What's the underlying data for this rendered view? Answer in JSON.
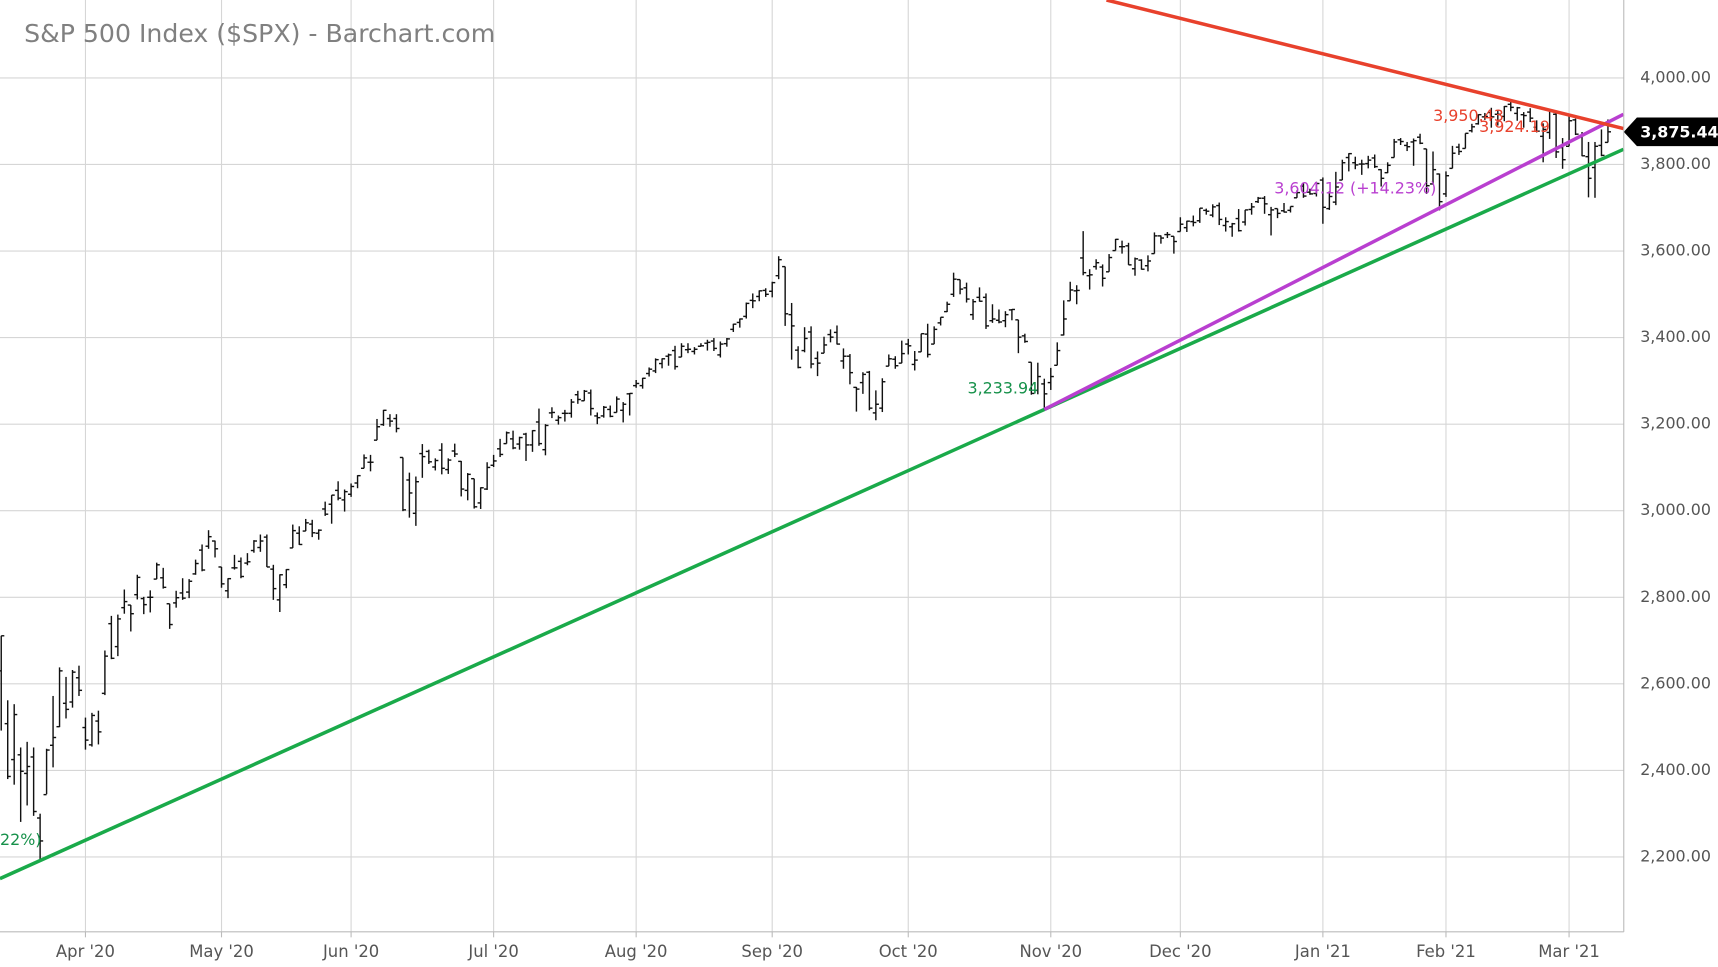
{
  "chart_data": {
    "type": "ohlc",
    "title": "S&P 500 Index ($SPX) - Barchart.com",
    "categories": [
      null,
      null,
      null,
      null,
      null,
      null,
      null,
      null,
      null,
      null,
      null,
      null,
      null,
      "Apr '20",
      null,
      null,
      null,
      null,
      null,
      null,
      null,
      null,
      null,
      null,
      null,
      null,
      null,
      null,
      null,
      null,
      null,
      null,
      null,
      null,
      "May '20",
      null,
      null,
      null,
      null,
      null,
      null,
      null,
      null,
      null,
      null,
      null,
      null,
      null,
      null,
      null,
      null,
      null,
      null,
      null,
      "Jun '20",
      null,
      null,
      null,
      null,
      null,
      null,
      null,
      null,
      null,
      null,
      null,
      null,
      null,
      null,
      null,
      null,
      null,
      null,
      null,
      null,
      null,
      "Jul '20",
      null,
      null,
      null,
      null,
      null,
      null,
      null,
      null,
      null,
      null,
      null,
      null,
      null,
      null,
      null,
      null,
      null,
      null,
      null,
      null,
      null,
      "Aug '20",
      null,
      null,
      null,
      null,
      null,
      null,
      null,
      null,
      null,
      null,
      null,
      null,
      null,
      null,
      null,
      null,
      null,
      null,
      null,
      null,
      "Sep '20",
      null,
      null,
      null,
      null,
      null,
      null,
      null,
      null,
      null,
      null,
      null,
      null,
      null,
      null,
      null,
      null,
      null,
      null,
      null,
      null,
      "Oct '20",
      null,
      null,
      null,
      null,
      null,
      null,
      null,
      null,
      null,
      null,
      null,
      null,
      null,
      null,
      null,
      null,
      null,
      null,
      null,
      null,
      null,
      "Nov '20",
      null,
      null,
      null,
      null,
      null,
      null,
      null,
      null,
      null,
      null,
      null,
      null,
      null,
      null,
      null,
      null,
      null,
      null,
      null,
      "Dec '20",
      null,
      null,
      null,
      null,
      null,
      null,
      null,
      null,
      null,
      null,
      null,
      null,
      null,
      null,
      null,
      null,
      null,
      null,
      null,
      null,
      null,
      "Jan '21",
      null,
      null,
      null,
      null,
      null,
      null,
      null,
      null,
      null,
      null,
      null,
      null,
      null,
      null,
      null,
      null,
      null,
      null,
      "Feb '21",
      null,
      null,
      null,
      null,
      null,
      null,
      null,
      null,
      null,
      null,
      null,
      null,
      null,
      null,
      null,
      null,
      null,
      null,
      "Mar '21",
      null,
      null,
      null,
      null,
      null,
      null
    ],
    "open": [
      2630,
      2508,
      2425,
      2436,
      2393,
      2431,
      2290,
      2344,
      2458,
      2501,
      2555,
      2558,
      2614,
      2499,
      2459,
      2514,
      2578,
      2739,
      2686,
      2776,
      2782,
      2806,
      2797,
      2800,
      2842,
      2845,
      2785,
      2787,
      2810,
      2812,
      2854,
      2909,
      2918,
      2930,
      2870,
      2815,
      2868,
      2883,
      2879,
      2908,
      2915,
      2939,
      2865,
      2794,
      2829,
      2914,
      2948,
      2953,
      2969,
      2948,
      3004,
      3015,
      3047,
      3025,
      3038,
      3064,
      3098,
      3112,
      3163,
      3199,
      3213,
      3213,
      3123,
      3071,
      2994,
      3132,
      3137,
      3101,
      3140,
      3095,
      3138,
      3114,
      3047,
      3074,
      3018,
      3050,
      3105,
      3143,
      3155,
      3166,
      3154,
      3177,
      3152,
      3205,
      3141,
      3226,
      3209,
      3225,
      3225,
      3268,
      3254,
      3272,
      3219,
      3219,
      3234,
      3227,
      3232,
      3270,
      3289,
      3289,
      3317,
      3323,
      3340,
      3357,
      3370,
      3355,
      3372,
      3368,
      3380,
      3387,
      3392,
      3360,
      3386,
      3419,
      3435,
      3449,
      3486,
      3495,
      3509,
      3507,
      3543,
      3564,
      3453,
      3371,
      3370,
      3413,
      3352,
      3364,
      3407,
      3412,
      3346,
      3357,
      3285,
      3296,
      3320,
      3226,
      3237,
      3334,
      3350,
      3341,
      3385,
      3338,
      3367,
      3408,
      3385,
      3434,
      3460,
      3500,
      3534,
      3515,
      3453,
      3493,
      3493,
      3439,
      3440,
      3439,
      3464,
      3441,
      3404,
      3343,
      3278,
      3293,
      3296,
      3336,
      3406,
      3485,
      3508,
      3584,
      3543,
      3564,
      3563,
      3552,
      3601,
      3610,
      3612,
      3559,
      3579,
      3566,
      3594,
      3635,
      3638,
      3634,
      3645,
      3654,
      3668,
      3670,
      3694,
      3683,
      3705,
      3659,
      3656,
      3675,
      3667,
      3696,
      3714,
      3722,
      3684,
      3698,
      3693,
      3694,
      3723,
      3750,
      3736,
      3733,
      3764,
      3698,
      3713,
      3764,
      3816,
      3804,
      3801,
      3802,
      3815,
      3788,
      3781,
      3816,
      3857,
      3844,
      3852,
      3863,
      3836,
      3755,
      3778,
      3732,
      3791,
      3840,
      3837,
      3878,
      3894,
      3910,
      3920,
      3916,
      3911,
      3939,
      3918,
      3915,
      3921,
      3886,
      3865,
      3874,
      3916,
      3839,
      3842,
      3903,
      3863,
      3818,
      3793,
      3844,
      3851
    ],
    "high": [
      2711,
      2562,
      2553,
      2453,
      2466,
      2453,
      2300,
      2450,
      2572,
      2638,
      2616,
      2632,
      2642,
      2522,
      2533,
      2538,
      2677,
      2757,
      2760,
      2818,
      2782,
      2852,
      2801,
      2816,
      2880,
      2868,
      2785,
      2815,
      2844,
      2842,
      2887,
      2922,
      2955,
      2931,
      2870,
      2844,
      2898,
      2892,
      2902,
      2932,
      2945,
      2945,
      2875,
      2853,
      2865,
      2968,
      2964,
      2981,
      2979,
      2957,
      3021,
      3036,
      3068,
      3049,
      3063,
      3082,
      3130,
      3129,
      3212,
      3233,
      3223,
      3223,
      3123,
      3088,
      3079,
      3154,
      3141,
      3121,
      3156,
      3121,
      3155,
      3115,
      3087,
      3074,
      3054,
      3112,
      3129,
      3166,
      3183,
      3185,
      3171,
      3180,
      3186,
      3236,
      3200,
      3239,
      3220,
      3233,
      3258,
      3277,
      3279,
      3280,
      3227,
      3242,
      3243,
      3264,
      3251,
      3272,
      3302,
      3307,
      3331,
      3352,
      3352,
      3363,
      3381,
      3387,
      3387,
      3378,
      3387,
      3395,
      3399,
      3391,
      3399,
      3432,
      3444,
      3481,
      3502,
      3509,
      3514,
      3529,
      3588,
      3564,
      3480,
      3380,
      3424,
      3426,
      3368,
      3402,
      3419,
      3428,
      3375,
      3362,
      3286,
      3320,
      3323,
      3278,
      3306,
      3361,
      3357,
      3393,
      3397,
      3369,
      3409,
      3432,
      3426,
      3447,
      3483,
      3550,
      3534,
      3527,
      3489,
      3516,
      3502,
      3477,
      3465,
      3461,
      3466,
      3441,
      3409,
      3343,
      3342,
      3305,
      3330,
      3389,
      3486,
      3529,
      3521,
      3646,
      3558,
      3581,
      3569,
      3593,
      3628,
      3624,
      3619,
      3585,
      3581,
      3590,
      3643,
      3636,
      3644,
      3634,
      3678,
      3670,
      3682,
      3699,
      3698,
      3708,
      3712,
      3678,
      3665,
      3697,
      3695,
      3711,
      3725,
      3727,
      3702,
      3698,
      3711,
      3703,
      3740,
      3757,
      3744,
      3760,
      3770,
      3738,
      3783,
      3811,
      3826,
      3818,
      3811,
      3820,
      3823,
      3789,
      3805,
      3859,
      3861,
      3852,
      3860,
      3871,
      3836,
      3830,
      3779,
      3784,
      3843,
      3848,
      3872,
      3894,
      3916,
      3919,
      3931,
      3926,
      3935,
      3950.43,
      3933,
      3921,
      3930,
      3902,
      3895,
      3928,
      3925,
      3861,
      3914,
      3906,
      3875,
      3852,
      3852,
      3881,
      3904
    ],
    "low": [
      2492,
      2380,
      2367,
      2281,
      2319,
      2295,
      2191.86,
      2345,
      2407,
      2500,
      2520,
      2545,
      2572,
      2448,
      2455,
      2460,
      2574,
      2657,
      2664,
      2762,
      2721,
      2795,
      2761,
      2765,
      2842,
      2820,
      2727,
      2776,
      2794,
      2798,
      2852,
      2860,
      2912,
      2892,
      2822,
      2798,
      2864,
      2844,
      2874,
      2903,
      2905,
      2870,
      2794,
      2766,
      2821,
      2914,
      2921,
      2953,
      2939,
      2933,
      2988,
      2970,
      3024,
      2998,
      3032,
      3052,
      3098,
      3091,
      3163,
      3196,
      3194,
      3181,
      2999,
      2984,
      2965,
      3076,
      3108,
      3093,
      3084,
      3085,
      3124,
      3033,
      3024,
      3005,
      3004,
      3048,
      3101,
      3124,
      3155,
      3142,
      3141,
      3115,
      3136,
      3150,
      3128,
      3214,
      3199,
      3206,
      3215,
      3247,
      3254,
      3220,
      3200,
      3215,
      3216,
      3227,
      3204,
      3220,
      3284,
      3282,
      3310,
      3318,
      3329,
      3335,
      3326,
      3355,
      3364,
      3361,
      3379,
      3370,
      3369,
      3354,
      3379,
      3413,
      3423,
      3444,
      3468,
      3484,
      3494,
      3493,
      3535,
      3427,
      3349,
      3329,
      3366,
      3329,
      3311,
      3364,
      3389,
      3384,
      3328,
      3292,
      3229,
      3270,
      3232,
      3209,
      3228,
      3334,
      3328,
      3341,
      3361,
      3324,
      3367,
      3354,
      3385,
      3428,
      3459,
      3494,
      3500,
      3481,
      3441,
      3483,
      3420,
      3434,
      3433,
      3424,
      3440,
      3364,
      3388,
      3268,
      3269,
      3233.94,
      3279,
      3336,
      3405,
      3485,
      3477,
      3544,
      3511,
      3557,
      3518,
      3552,
      3601,
      3594,
      3568,
      3543,
      3557,
      3553,
      3594,
      3617,
      3630,
      3594,
      3645,
      3644,
      3657,
      3665,
      3684,
      3678,
      3660,
      3645,
      3633,
      3645,
      3659,
      3684,
      3711,
      3686,
      3636,
      3676,
      3689,
      3689,
      3723,
      3723,
      3730,
      3726,
      3663,
      3695,
      3706,
      3764,
      3784,
      3789,
      3776,
      3791,
      3792,
      3749,
      3780,
      3816,
      3845,
      3831,
      3797,
      3847,
      3732,
      3755,
      3694,
      3725,
      3791,
      3822,
      3837,
      3874,
      3892,
      3903,
      3885,
      3890,
      3900,
      3923,
      3901,
      3885,
      3898,
      3874,
      3805,
      3859,
      3815,
      3790,
      3842,
      3868,
      3819,
      3724,
      3723,
      3819,
      3851
    ],
    "close": [
      2711,
      2386,
      2529,
      2398,
      2409,
      2305,
      2237,
      2447,
      2476,
      2630,
      2541,
      2627,
      2585,
      2470,
      2527,
      2489,
      2664,
      2659,
      2750,
      2790,
      2762,
      2846,
      2783,
      2800,
      2875,
      2823,
      2737,
      2799,
      2798,
      2837,
      2878,
      2863,
      2940,
      2912,
      2831,
      2843,
      2868,
      2848,
      2882,
      2930,
      2930,
      2870,
      2820,
      2852,
      2864,
      2954,
      2922,
      2972,
      2949,
      2955,
      2992,
      3036,
      3029,
      3044,
      3056,
      3081,
      3122,
      3112,
      3194,
      3232,
      3207,
      3190,
      3002,
      3041,
      3067,
      3125,
      3113,
      3116,
      3098,
      3117,
      3131,
      3050,
      3084,
      3009,
      3053,
      3100,
      3115,
      3130,
      3180,
      3145,
      3169,
      3152,
      3185,
      3155,
      3197,
      3227,
      3215,
      3225,
      3251,
      3257,
      3276,
      3236,
      3215,
      3239,
      3218,
      3258,
      3246,
      3271,
      3294,
      3306,
      3327,
      3349,
      3351,
      3360,
      3333,
      3380,
      3373,
      3373,
      3381,
      3389,
      3375,
      3385,
      3397,
      3431,
      3443,
      3479,
      3485,
      3508,
      3500,
      3527,
      3580,
      3455,
      3427,
      3331,
      3398,
      3339,
      3341,
      3383,
      3401,
      3385,
      3357,
      3319,
      3281,
      3315,
      3237,
      3246,
      3298,
      3351,
      3335,
      3363,
      3381,
      3348,
      3409,
      3361,
      3419,
      3447,
      3477,
      3535,
      3512,
      3489,
      3483,
      3484,
      3427,
      3443,
      3436,
      3453,
      3465,
      3401,
      3391,
      3271,
      3310,
      3270,
      3310,
      3370,
      3443,
      3510,
      3509,
      3550,
      3545,
      3573,
      3537,
      3585,
      3627,
      3610,
      3568,
      3582,
      3558,
      3577,
      3635,
      3630,
      3638,
      3622,
      3662,
      3669,
      3666,
      3699,
      3692,
      3702,
      3673,
      3668,
      3663,
      3647,
      3695,
      3702,
      3722,
      3709,
      3695,
      3687,
      3690,
      3703,
      3735,
      3727,
      3732,
      3756,
      3701,
      3726,
      3748,
      3804,
      3825,
      3799,
      3801,
      3810,
      3795,
      3768,
      3798,
      3852,
      3853,
      3841,
      3855,
      3849,
      3751,
      3788,
      3714,
      3774,
      3826,
      3830,
      3872,
      3887,
      3915,
      3911,
      3910,
      3916,
      3934,
      3932,
      3931,
      3913,
      3907,
      3877,
      3881,
      3925,
      3829,
      3811,
      3901,
      3870,
      3820,
      3768,
      3842,
      3821,
      3875.44
    ],
    "color": "#111111",
    "last_label": "3,875.44",
    "ylim": [
      2027,
      4180
    ],
    "yticks": [
      {
        "value": 2200,
        "label": "2,200.00"
      },
      {
        "value": 2400,
        "label": "2,400.00"
      },
      {
        "value": 2600,
        "label": "2,600.00"
      },
      {
        "value": 2800,
        "label": "2,800.00"
      },
      {
        "value": 3000,
        "label": "3,000.00"
      },
      {
        "value": 3200,
        "label": "3,200.00"
      },
      {
        "value": 3400,
        "label": "3,400.00"
      },
      {
        "value": 3600,
        "label": "3,600.00"
      },
      {
        "value": 3800,
        "label": "3,800.00"
      },
      {
        "value": 4000,
        "label": "4,000.00"
      }
    ],
    "grid": true,
    "trendlines": [
      {
        "color": "#1aaa4a",
        "x": [
          -0.2,
          250.4
        ],
        "y": [
          2150,
          3835
        ]
      },
      {
        "color": "#b93fd0",
        "x": [
          161,
          250.4
        ],
        "y": [
          3233.94,
          3916
        ]
      },
      {
        "color": "#e8412c",
        "x": [
          170.6,
          250.4
        ],
        "y": [
          4180,
          3883
        ]
      }
    ],
    "annotations": [
      {
        "text": "3,950.43",
        "color": "#e8412c"
      },
      {
        "text": "3,924.19",
        "color": "#e8412c"
      },
      {
        "text": "3,604.12 (+14.23%)",
        "color": "#b93fd0"
      },
      {
        "text": "3,233.94",
        "color": "#16914a"
      },
      {
        "text": "22%)",
        "color": "#16914a"
      }
    ]
  }
}
